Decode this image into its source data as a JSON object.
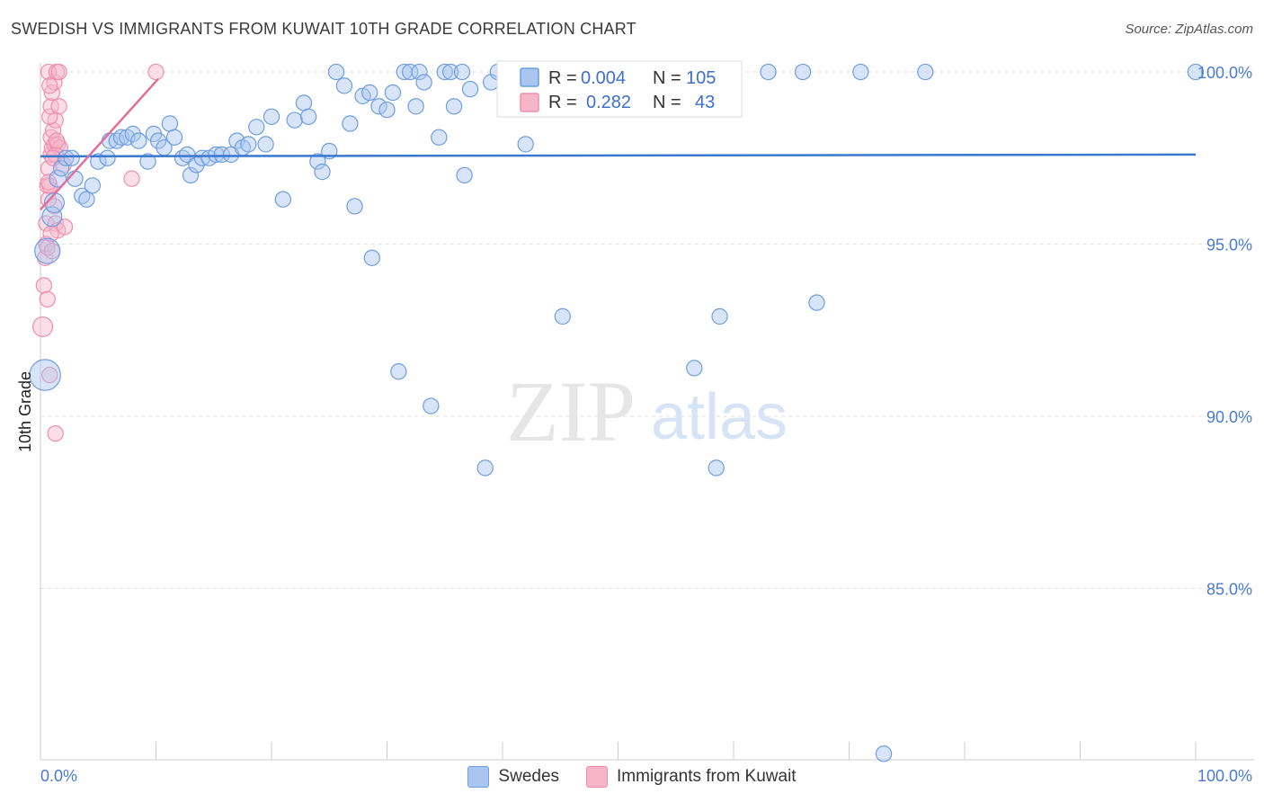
{
  "title": "SWEDISH VS IMMIGRANTS FROM KUWAIT 10TH GRADE CORRELATION CHART",
  "source": "Source: ZipAtlas.com",
  "watermark": {
    "zip": "ZIP",
    "atlas": "atlas"
  },
  "legend": {
    "r_label": "R =",
    "n_label": "N =",
    "series1": {
      "r": "0.004",
      "n": "105"
    },
    "series2": {
      "r": "0.282",
      "n": "43"
    }
  },
  "colors": {
    "blue_fill": "#a9c6f0",
    "blue_stroke": "#6f9ee0",
    "blue_line": "#3a78d0",
    "pink_fill": "#f7b5c9",
    "pink_stroke": "#ee8fae",
    "pink_line": "#e0709a",
    "grid": "#e2e2e2",
    "axis_text": "#4a7bd0"
  },
  "chart_data": {
    "type": "scatter",
    "title": "SWEDISH VS IMMIGRANTS FROM KUWAIT 10TH GRADE CORRELATION CHART",
    "xlabel": "",
    "ylabel": "10th Grade",
    "xlim": [
      0,
      100
    ],
    "ylim": [
      80,
      100.8
    ],
    "x_tick_labels": [
      "0.0%",
      "100.0%"
    ],
    "y_ticks": [
      85,
      90,
      95,
      100
    ],
    "y_tick_labels": [
      "85.0%",
      "90.0%",
      "95.0%",
      "100.0%"
    ],
    "grid": true,
    "series": [
      {
        "name": "Swedes",
        "r": 0.004,
        "n": 105,
        "trend": {
          "x": [
            0,
            100
          ],
          "y": [
            97.55,
            97.6
          ]
        },
        "points": [
          [
            0.4,
            91.2,
            22
          ],
          [
            0.6,
            94.8,
            18
          ],
          [
            1.0,
            95.8,
            14
          ],
          [
            1.2,
            96.2,
            14
          ],
          [
            1.5,
            96.9,
            12
          ],
          [
            1.8,
            97.2,
            11
          ],
          [
            2.2,
            97.5,
            11
          ],
          [
            2.7,
            97.5,
            11
          ],
          [
            3.0,
            96.9,
            11
          ],
          [
            3.6,
            96.4,
            11
          ],
          [
            4.0,
            96.3,
            11
          ],
          [
            4.5,
            96.7,
            11
          ],
          [
            5.0,
            97.4,
            11
          ],
          [
            5.8,
            97.5,
            11
          ],
          [
            6.0,
            98.0,
            11
          ],
          [
            6.6,
            98.0,
            11
          ],
          [
            7.0,
            98.1,
            11
          ],
          [
            7.5,
            98.1,
            11
          ],
          [
            8.0,
            98.2,
            11
          ],
          [
            8.5,
            98.0,
            11
          ],
          [
            9.3,
            97.4,
            11
          ],
          [
            9.8,
            98.2,
            11
          ],
          [
            10.2,
            98.0,
            11
          ],
          [
            10.7,
            97.8,
            11
          ],
          [
            11.2,
            98.5,
            11
          ],
          [
            11.6,
            98.1,
            11
          ],
          [
            12.3,
            97.5,
            11
          ],
          [
            12.7,
            97.6,
            11
          ],
          [
            13.0,
            97.0,
            11
          ],
          [
            13.5,
            97.3,
            11
          ],
          [
            14.0,
            97.5,
            11
          ],
          [
            14.6,
            97.5,
            11
          ],
          [
            15.2,
            97.6,
            11
          ],
          [
            15.7,
            97.6,
            11
          ],
          [
            16.5,
            97.6,
            11
          ],
          [
            17.0,
            98.0,
            11
          ],
          [
            17.5,
            97.8,
            11
          ],
          [
            18.0,
            97.9,
            11
          ],
          [
            18.7,
            98.4,
            11
          ],
          [
            19.5,
            97.9,
            11
          ],
          [
            20.0,
            98.7,
            11
          ],
          [
            21.0,
            96.3,
            11
          ],
          [
            22.0,
            98.6,
            11
          ],
          [
            22.8,
            99.1,
            11
          ],
          [
            23.2,
            98.7,
            11
          ],
          [
            24.0,
            97.4,
            11
          ],
          [
            24.4,
            97.1,
            11
          ],
          [
            25.0,
            97.7,
            11
          ],
          [
            25.6,
            100.0,
            11
          ],
          [
            26.3,
            99.6,
            11
          ],
          [
            26.8,
            98.5,
            11
          ],
          [
            27.2,
            96.1,
            11
          ],
          [
            27.9,
            99.3,
            11
          ],
          [
            28.5,
            99.4,
            11
          ],
          [
            28.7,
            94.6,
            11
          ],
          [
            29.3,
            99.0,
            11
          ],
          [
            30.0,
            98.9,
            11
          ],
          [
            30.5,
            99.4,
            11
          ],
          [
            31.0,
            91.3,
            11
          ],
          [
            31.5,
            100.0,
            11
          ],
          [
            32.0,
            100.0,
            11
          ],
          [
            32.5,
            99.0,
            11
          ],
          [
            32.8,
            100.0,
            11
          ],
          [
            33.2,
            99.7,
            11
          ],
          [
            33.8,
            90.3,
            11
          ],
          [
            34.5,
            98.1,
            11
          ],
          [
            35.0,
            100.0,
            11
          ],
          [
            35.5,
            100.0,
            11
          ],
          [
            35.8,
            99.0,
            11
          ],
          [
            36.5,
            100.0,
            11
          ],
          [
            36.7,
            97.0,
            11
          ],
          [
            37.2,
            99.5,
            11
          ],
          [
            38.5,
            88.5,
            11
          ],
          [
            39.0,
            99.7,
            11
          ],
          [
            39.6,
            100.0,
            11
          ],
          [
            40.3,
            100.0,
            11
          ],
          [
            40.9,
            100.0,
            11
          ],
          [
            41.3,
            100.0,
            11
          ],
          [
            42.0,
            97.9,
            11
          ],
          [
            42.5,
            100.0,
            11
          ],
          [
            43.0,
            100.0,
            11
          ],
          [
            44.5,
            100.0,
            11
          ],
          [
            45.0,
            100.0,
            11
          ],
          [
            45.2,
            92.9,
            11
          ],
          [
            46.5,
            100.0,
            11
          ],
          [
            47.0,
            100.0,
            11
          ],
          [
            47.8,
            100.0,
            11
          ],
          [
            48.5,
            100.0,
            11
          ],
          [
            49.8,
            100.0,
            11
          ],
          [
            52.0,
            100.0,
            11
          ],
          [
            53.0,
            100.0,
            11
          ],
          [
            53.8,
            100.0,
            11
          ],
          [
            55.0,
            100.0,
            11
          ],
          [
            56.0,
            100.0,
            11
          ],
          [
            56.6,
            91.4,
            11
          ],
          [
            58.5,
            88.5,
            11
          ],
          [
            58.8,
            92.9,
            11
          ],
          [
            60.0,
            100.0,
            11
          ],
          [
            63.0,
            100.0,
            11
          ],
          [
            66.0,
            100.0,
            11
          ],
          [
            67.2,
            93.3,
            11
          ],
          [
            71.0,
            100.0,
            11
          ],
          [
            73.0,
            80.2,
            11
          ],
          [
            76.6,
            100.0,
            11
          ],
          [
            100.0,
            100.0,
            11
          ]
        ]
      },
      {
        "name": "Immigrants from Kuwait",
        "r": 0.282,
        "n": 43,
        "trend": {
          "x": [
            0,
            10.2
          ],
          "y": [
            96.0,
            99.8
          ]
        },
        "points": [
          [
            0.2,
            92.6,
            14
          ],
          [
            0.3,
            93.8,
            11
          ],
          [
            0.4,
            94.6,
            11
          ],
          [
            0.5,
            95.0,
            11
          ],
          [
            0.6,
            94.9,
            11
          ],
          [
            0.5,
            95.6,
            11
          ],
          [
            0.7,
            96.3,
            11
          ],
          [
            0.6,
            96.7,
            11
          ],
          [
            0.8,
            96.7,
            11
          ],
          [
            0.7,
            97.2,
            11
          ],
          [
            0.9,
            97.6,
            11
          ],
          [
            1.0,
            97.8,
            11
          ],
          [
            1.2,
            97.9,
            11
          ],
          [
            0.9,
            98.1,
            11
          ],
          [
            1.1,
            98.3,
            11
          ],
          [
            1.3,
            98.6,
            11
          ],
          [
            0.8,
            98.7,
            11
          ],
          [
            0.9,
            99.0,
            11
          ],
          [
            1.6,
            99.0,
            11
          ],
          [
            1.0,
            99.4,
            11
          ],
          [
            1.2,
            99.7,
            11
          ],
          [
            0.7,
            100.0,
            11
          ],
          [
            1.4,
            100.0,
            11
          ],
          [
            1.6,
            100.0,
            11
          ],
          [
            1.5,
            97.9,
            11
          ],
          [
            1.7,
            97.8,
            11
          ],
          [
            1.3,
            97.6,
            11
          ],
          [
            2.0,
            97.3,
            11
          ],
          [
            1.3,
            95.6,
            11
          ],
          [
            1.5,
            95.4,
            11
          ],
          [
            2.1,
            95.5,
            11
          ],
          [
            0.6,
            93.4,
            11
          ],
          [
            0.8,
            91.2,
            11
          ],
          [
            1.3,
            89.5,
            11
          ],
          [
            7.9,
            96.9,
            11
          ],
          [
            10.0,
            100.0,
            11
          ],
          [
            1.1,
            97.5,
            11
          ],
          [
            0.9,
            95.3,
            11
          ],
          [
            0.7,
            96.8,
            11
          ],
          [
            1.2,
            96.1,
            11
          ],
          [
            1.4,
            98.0,
            11
          ],
          [
            0.8,
            99.6,
            11
          ],
          [
            1.0,
            94.8,
            11
          ]
        ]
      }
    ]
  },
  "bottom_legend": [
    {
      "label": "Swedes"
    },
    {
      "label": "Immigrants from Kuwait"
    }
  ]
}
